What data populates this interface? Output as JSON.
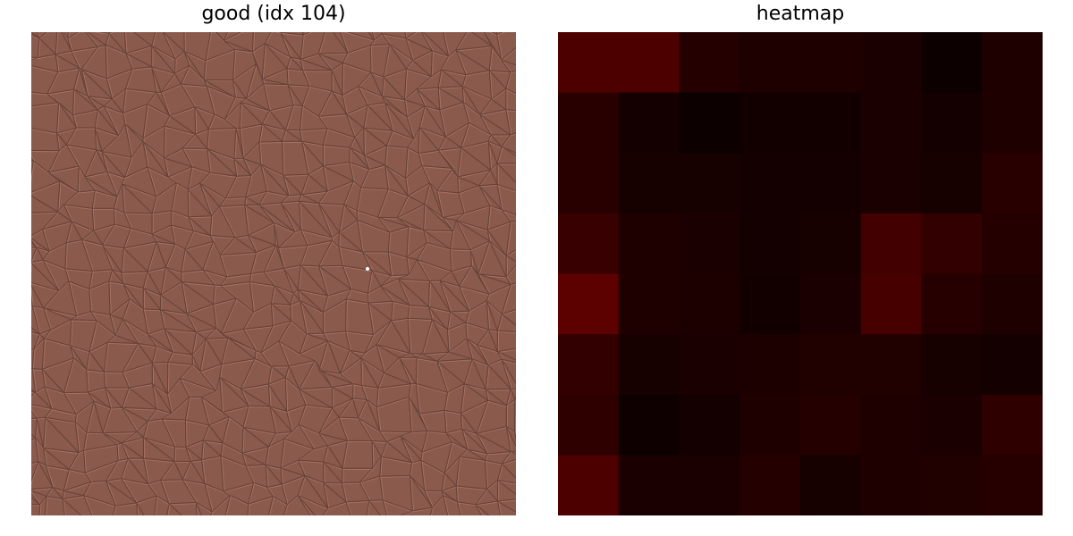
{
  "panels": {
    "left": {
      "title": "good (idx 104)",
      "texture_color": "#8a5a4c",
      "crack_color": "#5a3a30",
      "highlight_color": "#c48a78"
    },
    "right": {
      "title": "heatmap"
    }
  },
  "chart_data": {
    "type": "heatmap",
    "title": "heatmap",
    "colormap": [
      "#000000",
      "#ff0000"
    ],
    "rows": 8,
    "cols": 8,
    "values": [
      [
        0.3,
        0.3,
        0.14,
        0.12,
        0.12,
        0.1,
        0.05,
        0.12
      ],
      [
        0.16,
        0.08,
        0.05,
        0.07,
        0.07,
        0.1,
        0.08,
        0.12
      ],
      [
        0.16,
        0.09,
        0.09,
        0.08,
        0.08,
        0.1,
        0.09,
        0.16
      ],
      [
        0.22,
        0.12,
        0.1,
        0.08,
        0.09,
        0.26,
        0.2,
        0.14
      ],
      [
        0.36,
        0.12,
        0.11,
        0.07,
        0.1,
        0.28,
        0.15,
        0.12
      ],
      [
        0.2,
        0.09,
        0.1,
        0.11,
        0.13,
        0.13,
        0.09,
        0.08
      ],
      [
        0.18,
        0.06,
        0.08,
        0.12,
        0.14,
        0.12,
        0.1,
        0.18
      ],
      [
        0.3,
        0.1,
        0.1,
        0.14,
        0.09,
        0.12,
        0.13,
        0.15
      ]
    ]
  }
}
